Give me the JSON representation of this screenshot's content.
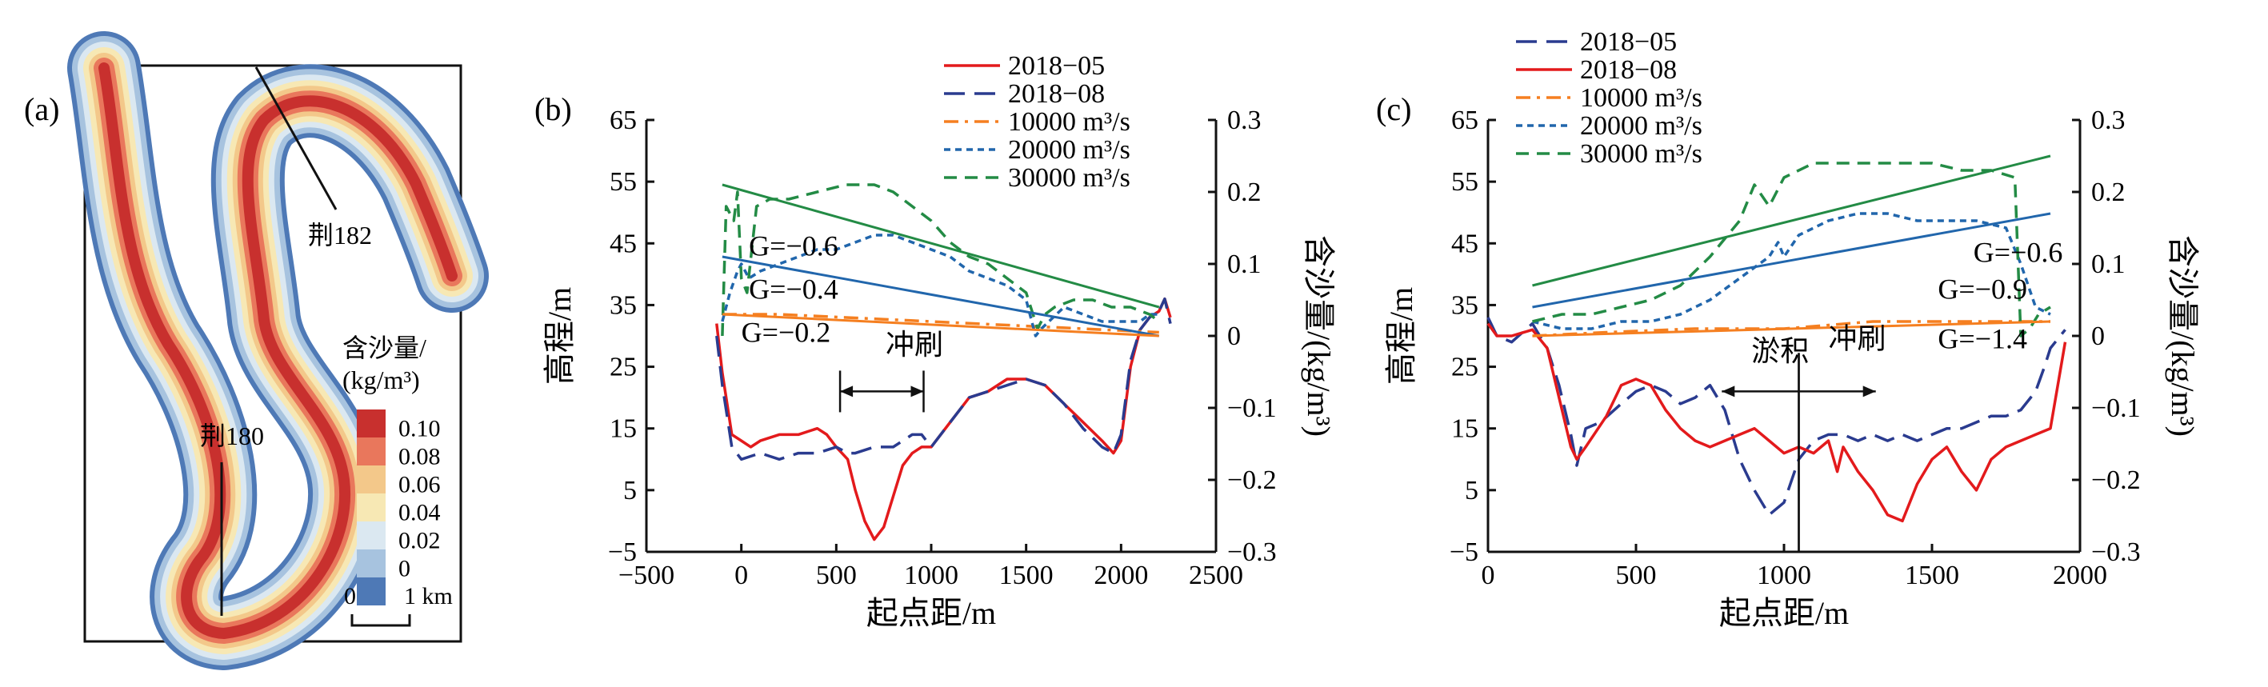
{
  "panel_a": {
    "label": "(a)",
    "section_labels": [
      "荆182",
      "荆180"
    ],
    "legend_title": [
      "含沙量/",
      "(kg/m³)"
    ],
    "legend_values": [
      "0.10",
      "0.08",
      "0.06",
      "0.04",
      "0.02",
      "0"
    ],
    "legend_colors": [
      "#c8302e",
      "#e9775c",
      "#f3c88a",
      "#f7e8b4",
      "#dbe8f1",
      "#a7c3df",
      "#4e79b6"
    ],
    "scale": {
      "zero": "0",
      "distance": "1 km"
    }
  },
  "chart_data": [
    {
      "panel": "(b)",
      "type": "line",
      "xlabel": "起点距/m",
      "ylabel": "高程/m",
      "y2label": "含沙量/(kg/m³)",
      "xlim": [
        -500,
        2500
      ],
      "xticks": [
        "−500",
        "0",
        "500",
        "1000",
        "1500",
        "2000",
        "2500"
      ],
      "ylim": [
        -5,
        65
      ],
      "yticks": [
        "−5",
        "5",
        "15",
        "25",
        "35",
        "45",
        "55",
        "65"
      ],
      "y2lim": [
        -0.3,
        0.3
      ],
      "y2ticks": [
        "−0.3",
        "−0.2",
        "−0.1",
        "0",
        "0.1",
        "0.2",
        "0.3"
      ],
      "legend": [
        "2018−05",
        "2018−08",
        "10000 m³/s",
        "20000 m³/s",
        "30000 m³/s"
      ],
      "annotations": [
        {
          "text": "G=−0.6",
          "x": 40,
          "y": 43
        },
        {
          "text": "G=−0.4",
          "x": 40,
          "y": 36
        },
        {
          "text": "G=−0.2",
          "x": 0,
          "y": 29
        },
        {
          "text": "冲刷",
          "x": 760,
          "y": 27
        }
      ],
      "arrows": [
        {
          "direction": "both",
          "x": [
            520,
            960
          ],
          "y": 21
        }
      ],
      "series": [
        {
          "name": "2018−05",
          "axis": "left",
          "color": "#e31a1c",
          "dash": "solid",
          "x": [
            -130,
            -100,
            -80,
            -50,
            0,
            50,
            100,
            200,
            300,
            400,
            450,
            500,
            560,
            600,
            650,
            700,
            750,
            800,
            850,
            900,
            950,
            1000,
            1100,
            1200,
            1300,
            1400,
            1500,
            1600,
            1700,
            1800,
            1900,
            1960,
            2000,
            2050,
            2100,
            2150,
            2200,
            2230,
            2260
          ],
          "y": [
            32,
            24,
            20,
            14,
            13,
            12,
            13,
            14,
            14,
            15,
            14,
            12,
            10,
            5,
            0,
            -3,
            -1,
            4,
            9,
            11,
            12,
            12,
            16,
            20,
            21,
            23,
            23,
            22,
            19,
            16,
            13,
            11,
            13,
            25,
            31,
            33,
            34,
            36,
            33
          ]
        },
        {
          "name": "2018−08",
          "axis": "left",
          "color": "#2a3b8f",
          "dash": "longdash",
          "x": [
            -130,
            -100,
            -80,
            -50,
            0,
            100,
            200,
            300,
            400,
            500,
            560,
            600,
            700,
            800,
            850,
            900,
            950,
            1000,
            1100,
            1200,
            1300,
            1400,
            1500,
            1600,
            1700,
            1800,
            1900,
            1960,
            2000,
            2050,
            2100,
            2150,
            2200,
            2230,
            2260
          ],
          "y": [
            30,
            22,
            18,
            12,
            10,
            11,
            10,
            11,
            11,
            12,
            11,
            11,
            12,
            12,
            13,
            14,
            14,
            12,
            16,
            20,
            21,
            22,
            23,
            22,
            19,
            15,
            12,
            11,
            14,
            26,
            31,
            33,
            34,
            36,
            32
          ]
        },
        {
          "name": "10000 m³/s",
          "axis": "right",
          "color": "#f57f20",
          "dash": "dashdot",
          "x": [
            -100,
            200,
            600,
            1000,
            1400,
            1800,
            2200
          ],
          "y": [
            0.03,
            0.03,
            0.025,
            0.02,
            0.015,
            0.01,
            0.005
          ]
        },
        {
          "name": "20000 m³/s",
          "axis": "right",
          "color": "#2166ac",
          "dash": "shortdash",
          "x": [
            -100,
            -60,
            -20,
            0,
            40,
            100,
            200,
            300,
            400,
            500,
            600,
            700,
            800,
            900,
            1000,
            1100,
            1200,
            1300,
            1400,
            1500,
            1550,
            1580,
            1620,
            1700,
            1800,
            1900,
            2000,
            2100,
            2150,
            2200
          ],
          "y": [
            0.02,
            0.06,
            0.09,
            0.1,
            0.08,
            0.09,
            0.1,
            0.11,
            0.12,
            0.12,
            0.13,
            0.14,
            0.14,
            0.13,
            0.12,
            0.11,
            0.09,
            0.08,
            0.07,
            0.05,
            0.0,
            0.01,
            0.02,
            0.04,
            0.03,
            0.02,
            0.02,
            0.02,
            0.03,
            0.03
          ]
        },
        {
          "name": "30000 m³/s",
          "axis": "right",
          "color": "#238b45",
          "dash": "dash",
          "x": [
            -100,
            -80,
            -40,
            -20,
            0,
            30,
            80,
            150,
            250,
            400,
            550,
            700,
            800,
            900,
            1000,
            1100,
            1200,
            1300,
            1400,
            1500,
            1560,
            1600,
            1650,
            1750,
            1850,
            1950,
            2050,
            2150,
            2200
          ],
          "y": [
            0.0,
            0.18,
            0.16,
            0.2,
            0.08,
            0.06,
            0.18,
            0.19,
            0.19,
            0.2,
            0.21,
            0.21,
            0.2,
            0.18,
            0.16,
            0.13,
            0.11,
            0.1,
            0.08,
            0.06,
            0.01,
            0.03,
            0.04,
            0.05,
            0.05,
            0.04,
            0.04,
            0.03,
            0.02
          ]
        },
        {
          "name": "30000 m³/s trend",
          "axis": "right",
          "color": "#238b45",
          "dash": "solid",
          "x": [
            -100,
            2200
          ],
          "y": [
            0.21,
            0.04
          ]
        },
        {
          "name": "20000 m³/s trend",
          "axis": "right",
          "color": "#2166ac",
          "dash": "solid",
          "x": [
            -100,
            2200
          ],
          "y": [
            0.11,
            0.0
          ]
        },
        {
          "name": "10000 m³/s trend",
          "axis": "right",
          "color": "#f57f20",
          "dash": "solid",
          "x": [
            -100,
            2200
          ],
          "y": [
            0.03,
            0.0
          ]
        }
      ]
    },
    {
      "panel": "(c)",
      "type": "line",
      "xlabel": "起点距/m",
      "ylabel": "高程/m",
      "y2label": "含沙量/(kg/m³)",
      "xlim": [
        0,
        2000
      ],
      "xticks": [
        "0",
        "500",
        "1000",
        "1500",
        "2000"
      ],
      "ylim": [
        -5,
        65
      ],
      "yticks": [
        "−5",
        "5",
        "15",
        "25",
        "35",
        "45",
        "55",
        "65"
      ],
      "y2lim": [
        -0.3,
        0.3
      ],
      "y2ticks": [
        "−0.3",
        "−0.2",
        "−0.1",
        "0",
        "0.1",
        "0.2",
        "0.3"
      ],
      "legend": [
        "2018−05",
        "2018−08",
        "10000 m³/s",
        "20000 m³/s",
        "30000 m³/s"
      ],
      "annotations": [
        {
          "text": "G=−0.6",
          "x": 1640,
          "y": 42
        },
        {
          "text": "G=−0.9",
          "x": 1520,
          "y": 36
        },
        {
          "text": "G=−1.4",
          "x": 1520,
          "y": 28
        },
        {
          "text": "淤积",
          "x": 890,
          "y": 26
        },
        {
          "text": "冲刷",
          "x": 1150,
          "y": 28
        }
      ],
      "arrows": [
        {
          "direction": "left",
          "x": [
            1050,
            790
          ],
          "y": 21
        },
        {
          "direction": "right",
          "x": [
            1050,
            1310
          ],
          "y": 21
        }
      ],
      "series": [
        {
          "name": "2018−05",
          "axis": "left",
          "color": "#2a3b8f",
          "dash": "longdash",
          "x": [
            0,
            30,
            80,
            150,
            200,
            240,
            280,
            300,
            330,
            380,
            450,
            500,
            550,
            600,
            650,
            700,
            750,
            800,
            850,
            900,
            950,
            1000,
            1050,
            1100,
            1150,
            1200,
            1250,
            1300,
            1350,
            1400,
            1450,
            1500,
            1550,
            1600,
            1650,
            1700,
            1750,
            1800,
            1850,
            1880,
            1900,
            1950
          ],
          "y": [
            33,
            30,
            29,
            32,
            28,
            22,
            14,
            9,
            15,
            16,
            19,
            21,
            22,
            21,
            19,
            20,
            22,
            18,
            10,
            5,
            1,
            3,
            10,
            13,
            14,
            14,
            13,
            14,
            13,
            14,
            13,
            14,
            15,
            15,
            16,
            17,
            17,
            18,
            21,
            25,
            28,
            31
          ]
        },
        {
          "name": "2018−08",
          "axis": "left",
          "color": "#e31a1c",
          "dash": "solid",
          "x": [
            0,
            30,
            80,
            150,
            200,
            240,
            280,
            300,
            330,
            400,
            450,
            500,
            550,
            600,
            650,
            700,
            750,
            800,
            850,
            900,
            950,
            1000,
            1050,
            1100,
            1150,
            1180,
            1200,
            1250,
            1300,
            1350,
            1400,
            1450,
            1500,
            1550,
            1600,
            1650,
            1700,
            1750,
            1800,
            1850,
            1900,
            1950
          ],
          "y": [
            32,
            30,
            30,
            31,
            28,
            20,
            12,
            10,
            12,
            17,
            22,
            23,
            22,
            18,
            15,
            13,
            12,
            13,
            14,
            15,
            13,
            11,
            12,
            11,
            13,
            8,
            12,
            8,
            5,
            1,
            0,
            6,
            10,
            12,
            8,
            5,
            10,
            12,
            13,
            14,
            15,
            29
          ]
        },
        {
          "name": "10000 m³/s",
          "axis": "right",
          "color": "#f57f20",
          "dash": "dashdot",
          "x": [
            150,
            400,
            700,
            1000,
            1300,
            1600,
            1900
          ],
          "y": [
            0.0,
            0.005,
            0.01,
            0.01,
            0.02,
            0.02,
            0.02
          ]
        },
        {
          "name": "20000 m³/s",
          "axis": "right",
          "color": "#2166ac",
          "dash": "shortdash",
          "x": [
            150,
            250,
            350,
            450,
            550,
            650,
            750,
            850,
            950,
            980,
            1000,
            1050,
            1150,
            1250,
            1350,
            1450,
            1550,
            1650,
            1750,
            1800,
            1850,
            1900
          ],
          "y": [
            0.02,
            0.01,
            0.01,
            0.02,
            0.02,
            0.03,
            0.05,
            0.08,
            0.11,
            0.13,
            0.11,
            0.14,
            0.16,
            0.17,
            0.17,
            0.16,
            0.16,
            0.16,
            0.15,
            0.1,
            0.04,
            0.03
          ]
        },
        {
          "name": "30000 m³/s",
          "axis": "right",
          "color": "#238b45",
          "dash": "dash",
          "x": [
            150,
            250,
            350,
            450,
            550,
            650,
            750,
            850,
            900,
            950,
            1000,
            1100,
            1200,
            1300,
            1400,
            1500,
            1600,
            1700,
            1780,
            1800,
            1830,
            1860,
            1900
          ],
          "y": [
            0.02,
            0.03,
            0.03,
            0.04,
            0.05,
            0.07,
            0.11,
            0.16,
            0.21,
            0.18,
            0.22,
            0.24,
            0.24,
            0.24,
            0.24,
            0.24,
            0.23,
            0.23,
            0.22,
            0.0,
            0.01,
            0.03,
            0.04
          ]
        },
        {
          "name": "30000 m³/s trend",
          "axis": "right",
          "color": "#238b45",
          "dash": "solid",
          "x": [
            150,
            1900
          ],
          "y": [
            0.07,
            0.25
          ]
        },
        {
          "name": "20000 m³/s trend",
          "axis": "right",
          "color": "#2166ac",
          "dash": "solid",
          "x": [
            150,
            1900
          ],
          "y": [
            0.04,
            0.17
          ]
        },
        {
          "name": "10000 m³/s trend",
          "axis": "right",
          "color": "#f57f20",
          "dash": "solid",
          "x": [
            150,
            1900
          ],
          "y": [
            0.0,
            0.02
          ]
        }
      ]
    }
  ]
}
